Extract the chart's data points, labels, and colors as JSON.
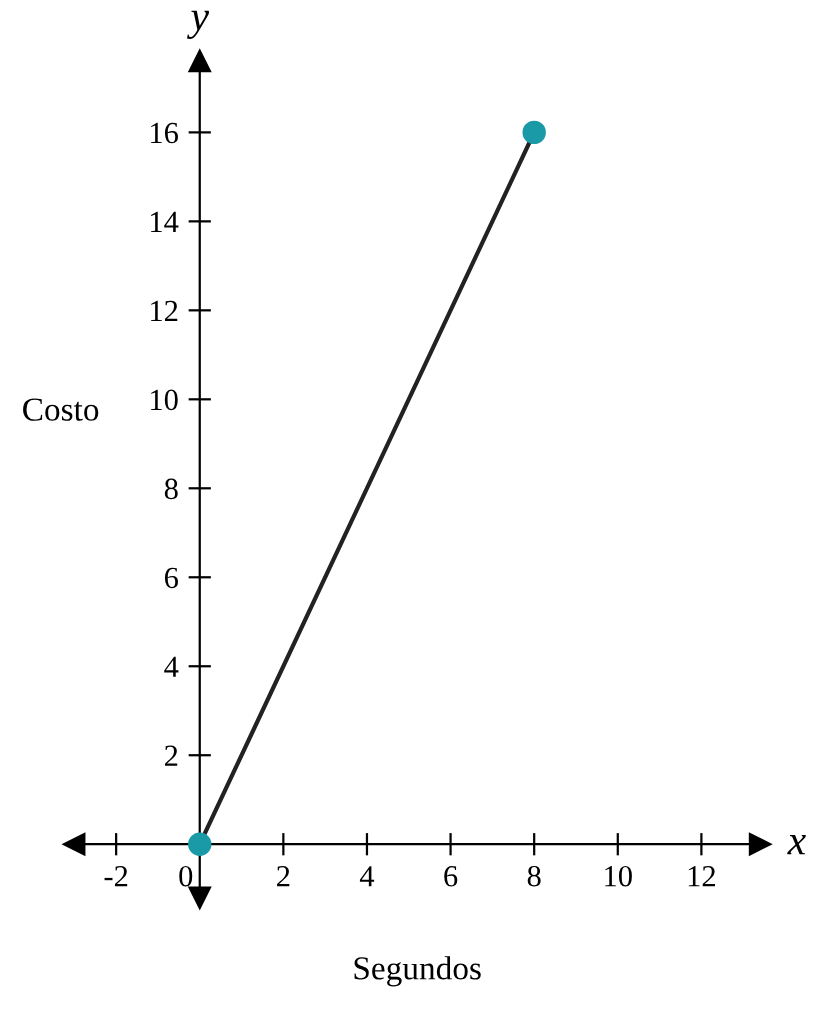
{
  "chart_data": {
    "type": "line",
    "xlabel": "Segundos",
    "ylabel": "Costo",
    "annotations": [
      "x",
      "y"
    ],
    "x": [
      0,
      8
    ],
    "series": [
      {
        "color": "#1a9aa6",
        "values": [
          0,
          16
        ]
      }
    ],
    "marker": "circle",
    "line_style": "solid",
    "grid": false,
    "xlim": [
      -3,
      13.4
    ],
    "ylim": [
      -1.2,
      17.6
    ],
    "xticks": [
      -2,
      0,
      2,
      4,
      6,
      8,
      10,
      12
    ],
    "yticks": [
      2,
      4,
      6,
      8,
      10,
      12,
      14,
      16
    ]
  }
}
